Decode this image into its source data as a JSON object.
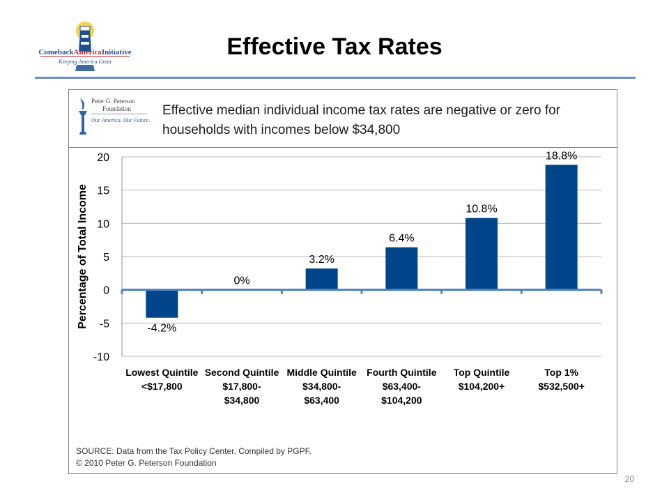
{
  "slide": {
    "title": "Effective Tax Rates",
    "page_number": "20",
    "logo": {
      "name_part1": "Comeback",
      "name_part2": "America",
      "name_part3": "Initiative",
      "tagline": "Keeping America Great",
      "icon": "lighthouse-icon"
    }
  },
  "panel": {
    "foundation": {
      "line1": "Peter G. Peterson",
      "line2": "Foundation",
      "tagline": "Our America. Our Future.",
      "icon": "torch-icon"
    },
    "headline_line1": "Effective median individual income tax rates are negative or zero for",
    "headline_line2": "households with incomes below $34,800",
    "source_line1": "SOURCE: Data from the Tax Policy Center. Compiled by PGPF.",
    "source_line2": "© 2010 Peter G. Peterson Foundation"
  },
  "chart_data": {
    "type": "bar",
    "title": "",
    "xlabel": "",
    "ylabel": "Percentage of Total Income",
    "ylim": [
      -10,
      20
    ],
    "yticks": [
      20,
      15,
      10,
      5,
      0,
      -5,
      -10
    ],
    "grid": true,
    "legend": "none",
    "bar_color": "#00458a",
    "categories": [
      [
        "Lowest Quintile",
        "<$17,800"
      ],
      [
        "Second Quintile",
        "$17,800-",
        "$34,800"
      ],
      [
        "Middle Quintile",
        "$34,800-",
        "$63,400"
      ],
      [
        "Fourth Quintile",
        "$63,400-",
        "$104,200"
      ],
      [
        "Top Quintile",
        "$104,200+"
      ],
      [
        "Top 1%",
        "$532,500+"
      ]
    ],
    "values": [
      -4.2,
      0,
      3.2,
      6.4,
      10.8,
      18.8
    ],
    "data_labels": [
      "-4.2%",
      "0%",
      "3.2%",
      "6.4%",
      "10.8%",
      "18.8%"
    ]
  }
}
